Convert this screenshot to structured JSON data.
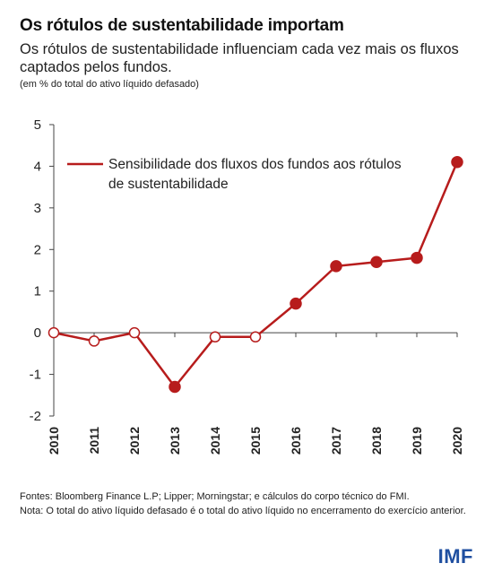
{
  "header": {
    "title": "Os rótulos de sustentabilidade importam",
    "subtitle": "Os rótulos de sustentabilidade influenciam cada vez mais os fluxos captados pelos fundos.",
    "unit": "(em % do total do ativo líquido defasado)"
  },
  "chart_data": {
    "type": "line",
    "x": [
      "2010",
      "2011",
      "2012",
      "2013",
      "2014",
      "2015",
      "2016",
      "2017",
      "2018",
      "2019",
      "2020"
    ],
    "series": [
      {
        "name": "Sensibilidade dos fluxos dos fundos aos rótulos de sustentabilidade",
        "values": [
          0,
          -0.2,
          0,
          -1.3,
          -0.1,
          -0.1,
          0.7,
          1.6,
          1.7,
          1.8,
          4.1
        ],
        "filled": [
          false,
          false,
          false,
          true,
          false,
          false,
          true,
          true,
          true,
          true,
          true
        ],
        "color": "#b71c1c"
      }
    ],
    "yticks": [
      5,
      4,
      3,
      2,
      1,
      0,
      -1,
      -2
    ],
    "ylim": [
      -2,
      5
    ],
    "legend_lines": [
      "Sensibilidade dos fluxos dos fundos aos rótulos",
      "de sustentabilidade"
    ],
    "legend_position": "top-left"
  },
  "footer": {
    "sources": "Fontes: Bloomberg Finance L.P; Lipper; Morningstar; e cálculos do corpo técnico do FMI.",
    "note": "Nota: O total do ativo líquido defasado é o total do ativo líquido no encerramento do exercício anterior."
  },
  "logo": "IMF"
}
